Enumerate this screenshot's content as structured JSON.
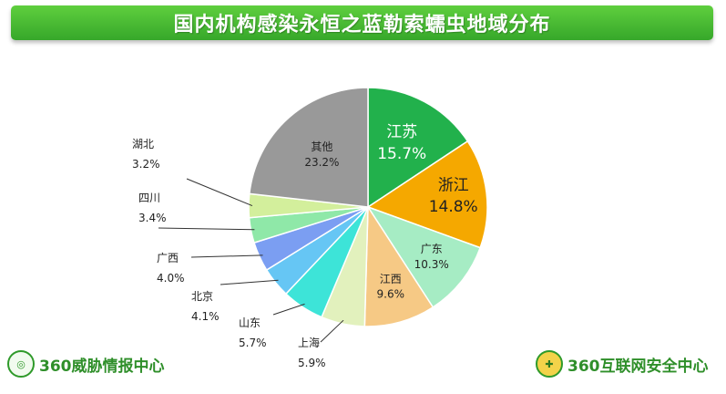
{
  "header": {
    "title": "国内机构感染永恒之蓝勒索蠕虫地域分布"
  },
  "footer": {
    "left_brand": "360威胁情报中心",
    "right_brand": "360互联网安全中心"
  },
  "chart_data": {
    "type": "pie",
    "title": "国内机构感染永恒之蓝勒索蠕虫地域分布",
    "slices": [
      {
        "label": "江苏",
        "value": 15.7,
        "value_text": "15.7%",
        "color": "#22b14c"
      },
      {
        "label": "浙江",
        "value": 14.8,
        "value_text": "14.8%",
        "color": "#f5a800"
      },
      {
        "label": "广东",
        "value": 10.3,
        "value_text": "10.3%",
        "color": "#a6ecc4"
      },
      {
        "label": "江西",
        "value": 9.6,
        "value_text": "9.6%",
        "color": "#f6c985"
      },
      {
        "label": "上海",
        "value": 5.9,
        "value_text": "5.9%",
        "color": "#e2f1bd"
      },
      {
        "label": "山东",
        "value": 5.7,
        "value_text": "5.7%",
        "color": "#3de4d8"
      },
      {
        "label": "北京",
        "value": 4.1,
        "value_text": "4.1%",
        "color": "#66c6f4"
      },
      {
        "label": "广西",
        "value": 4.0,
        "value_text": "4.0%",
        "color": "#7b9ef2"
      },
      {
        "label": "四川",
        "value": 3.4,
        "value_text": "3.4%",
        "color": "#8fe8a8"
      },
      {
        "label": "湖北",
        "value": 3.2,
        "value_text": "3.2%",
        "color": "#d3ef9c"
      },
      {
        "label": "其他",
        "value": 23.2,
        "value_text": "23.2%",
        "color": "#999999"
      }
    ]
  }
}
